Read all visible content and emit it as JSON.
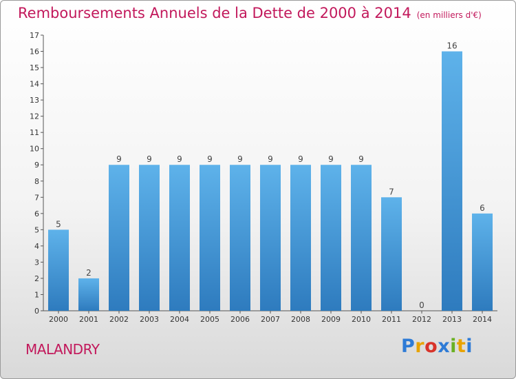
{
  "title": "Remboursements Annuels de la Dette de 2000 à 2014",
  "unit": "(en milliers d'€)",
  "commune": "MALANDRY",
  "logo": {
    "letters": [
      {
        "ch": "P",
        "color": "#2e7bd6"
      },
      {
        "ch": "r",
        "color": "#e8a300"
      },
      {
        "ch": "o",
        "color": "#d8332a"
      },
      {
        "ch": "x",
        "color": "#2e7bd6"
      },
      {
        "ch": "i",
        "color": "#6ab023"
      },
      {
        "ch": "t",
        "color": "#e8a300"
      },
      {
        "ch": "i",
        "color": "#2e7bd6"
      }
    ]
  },
  "chart_data": {
    "type": "bar",
    "categories": [
      "2000",
      "2001",
      "2002",
      "2003",
      "2004",
      "2005",
      "2006",
      "2007",
      "2008",
      "2009",
      "2010",
      "2011",
      "2012",
      "2013",
      "2014"
    ],
    "values": [
      5,
      2,
      9,
      9,
      9,
      9,
      9,
      9,
      9,
      9,
      9,
      7,
      0,
      16,
      6
    ],
    "ylim": [
      0,
      17
    ],
    "yticks": [
      0,
      1,
      2,
      3,
      4,
      5,
      6,
      7,
      8,
      9,
      10,
      11,
      12,
      13,
      14,
      15,
      16,
      17
    ],
    "grid": false,
    "bar_color_top": "#5eb2ea",
    "bar_color_bottom": "#2e7bbe"
  }
}
